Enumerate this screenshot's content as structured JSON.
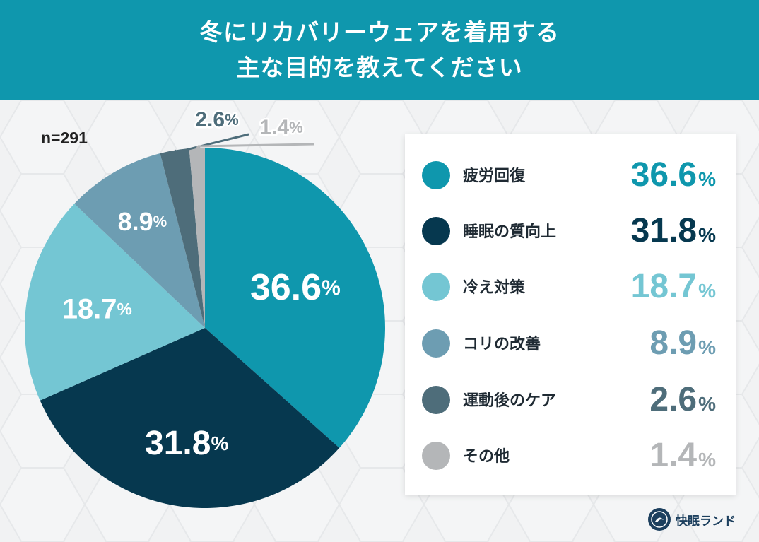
{
  "header": {
    "title_line1": "冬にリカバリーウェアを着用する",
    "title_line2": "主な目的を教えてください"
  },
  "sample_size": "n=291",
  "brand": {
    "name": "快眠ランド"
  },
  "colors": {
    "header_bg": "#0f97ad",
    "slices": [
      "#0f97ad",
      "#06384f",
      "#74c6d3",
      "#6d9db2",
      "#4e6d7a",
      "#b4b6b8"
    ]
  },
  "chart_data": {
    "type": "pie",
    "categories": [
      "疲労回復",
      "睡眠の質向上",
      "冷え対策",
      "コリの改善",
      "運動後のケア",
      "その他"
    ],
    "values": [
      36.6,
      31.8,
      18.7,
      8.9,
      2.6,
      1.4
    ],
    "value_labels": [
      "36.6",
      "31.8",
      "18.7",
      "8.9",
      "2.6",
      "1.4"
    ],
    "unit": "%",
    "start_angle": "12 o'clock",
    "direction": "clockwise",
    "legend_position": "right"
  }
}
